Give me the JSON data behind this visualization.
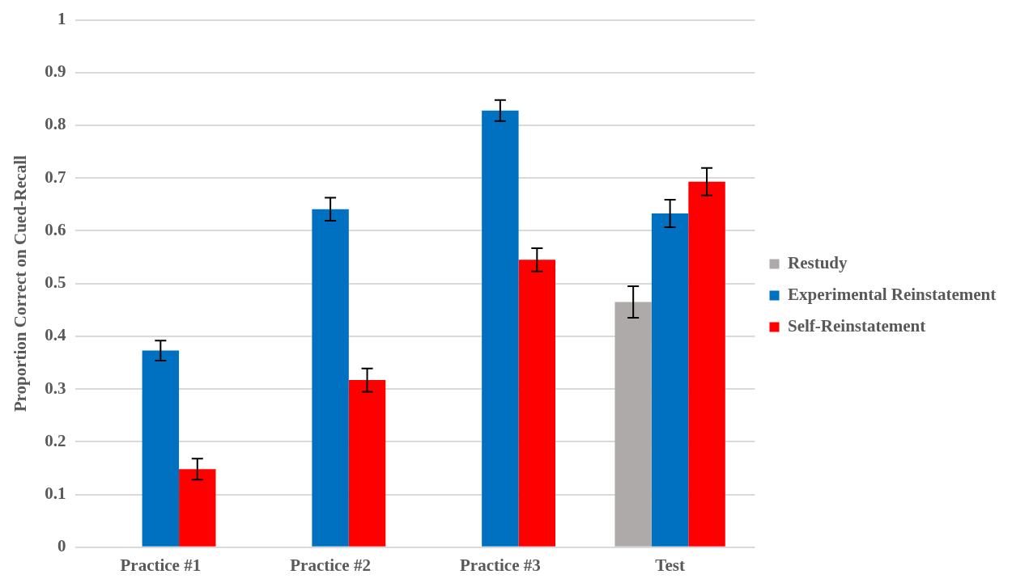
{
  "chart_data": {
    "type": "bar",
    "ylabel": "Proportion Correct on Cued-Recall",
    "categories": [
      "Practice #1",
      "Practice #2",
      "Practice #3",
      "Test"
    ],
    "series": [
      {
        "name": "Restudy",
        "color": "#aeaaaa",
        "values": [
          null,
          null,
          null,
          0.465
        ],
        "errors": [
          null,
          null,
          null,
          0.03
        ]
      },
      {
        "name": "Experimental Reinstatement",
        "color": "#0070c0",
        "values": [
          0.373,
          0.641,
          0.828,
          0.633
        ],
        "errors": [
          0.019,
          0.022,
          0.02,
          0.026
        ]
      },
      {
        "name": "Self-Reinstatement",
        "color": "#ff0000",
        "values": [
          0.148,
          0.317,
          0.545,
          0.693
        ],
        "errors": [
          0.02,
          0.022,
          0.022,
          0.026
        ]
      }
    ],
    "ylim": [
      0,
      1
    ],
    "yticks": [
      0,
      0.1,
      0.2,
      0.3,
      0.4,
      0.5,
      0.6,
      0.7,
      0.8,
      0.9,
      1
    ],
    "grid": "y",
    "legend": "right"
  }
}
